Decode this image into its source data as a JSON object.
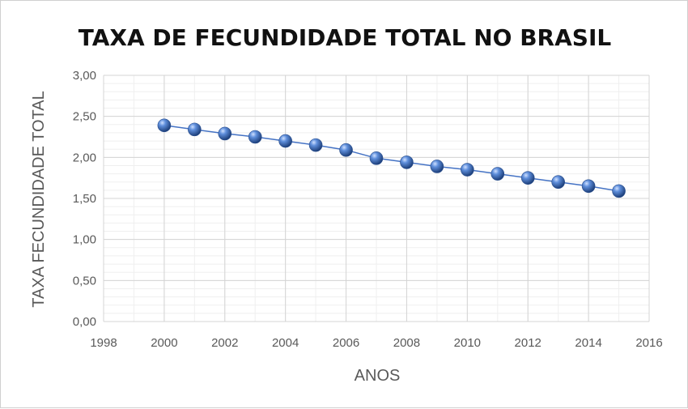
{
  "chart_data": {
    "type": "line",
    "title": "TAXA DE FECUNDIDADE TOTAL NO BRASIL",
    "xlabel": "ANOS",
    "ylabel": "TAXA FECUNDIDADE TOTAL",
    "xlim": [
      1998,
      2016
    ],
    "ylim": [
      0,
      3
    ],
    "x_ticks": [
      "1998",
      "2000",
      "2002",
      "2004",
      "2006",
      "2008",
      "2010",
      "2012",
      "2014",
      "2016"
    ],
    "y_ticks": [
      "0,00",
      "0,50",
      "1,00",
      "1,50",
      "2,00",
      "2,50",
      "3,00"
    ],
    "grid": "major and minor",
    "legend": "none",
    "series": [
      {
        "color": "#4472c4",
        "marker": "sphere",
        "x": [
          2000,
          2001,
          2002,
          2003,
          2004,
          2005,
          2006,
          2007,
          2008,
          2009,
          2010,
          2011,
          2012,
          2013,
          2014,
          2015
        ],
        "values": [
          2.39,
          2.34,
          2.29,
          2.25,
          2.2,
          2.15,
          2.09,
          1.99,
          1.94,
          1.89,
          1.85,
          1.8,
          1.75,
          1.7,
          1.65,
          1.59
        ]
      }
    ]
  }
}
